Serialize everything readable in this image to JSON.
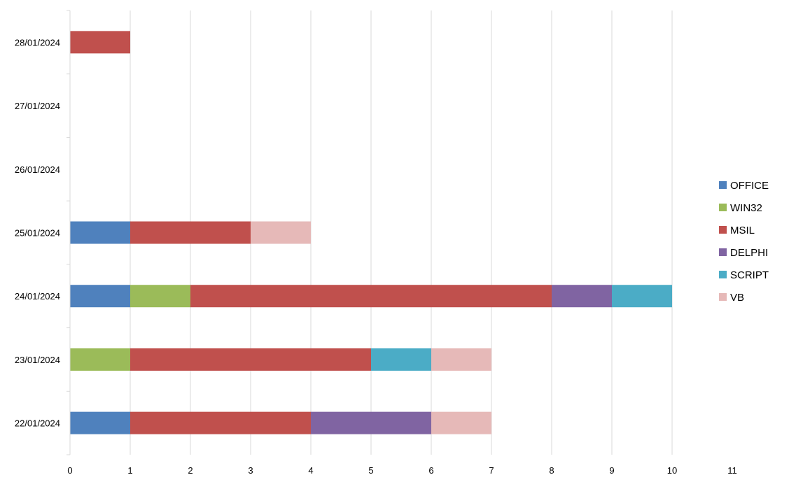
{
  "chart_data": {
    "type": "bar",
    "orientation": "horizontal",
    "stacked": true,
    "categories": [
      "22/01/2024",
      "23/01/2024",
      "24/01/2024",
      "25/01/2024",
      "26/01/2024",
      "27/01/2024",
      "28/01/2024"
    ],
    "series": [
      {
        "name": "OFFICE",
        "color": "#4F81BD",
        "values": [
          1,
          0,
          1,
          1,
          0,
          0,
          0
        ]
      },
      {
        "name": "WIN32",
        "color": "#9BBB59",
        "values": [
          0,
          1,
          1,
          0,
          0,
          0,
          0
        ]
      },
      {
        "name": "MSIL",
        "color": "#C0504D",
        "values": [
          3,
          4,
          6,
          2,
          0,
          0,
          1
        ]
      },
      {
        "name": "DELPHI",
        "color": "#8064A2",
        "values": [
          2,
          0,
          1,
          0,
          0,
          0,
          0
        ]
      },
      {
        "name": "SCRIPT",
        "color": "#4BACC6",
        "values": [
          0,
          1,
          1,
          0,
          0,
          0,
          0
        ]
      },
      {
        "name": "VB",
        "color": "#E6B9B8",
        "values": [
          1,
          1,
          0,
          1,
          0,
          0,
          0
        ]
      }
    ],
    "xlim": [
      0,
      11
    ],
    "xticks": [
      "0",
      "1",
      "2",
      "3",
      "4",
      "5",
      "6",
      "7",
      "8",
      "9",
      "10",
      "11"
    ],
    "grid": true,
    "legend_position": "right",
    "title": "",
    "xlabel": "",
    "ylabel": ""
  }
}
